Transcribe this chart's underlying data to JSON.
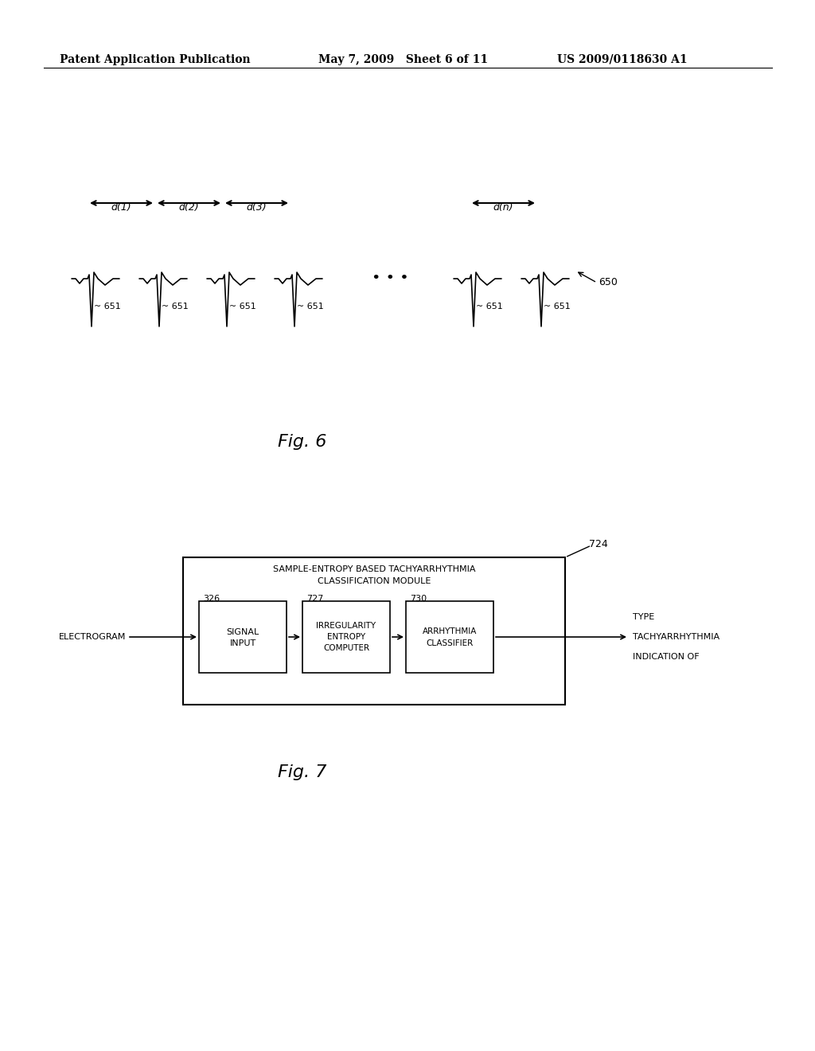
{
  "bg_color": "#ffffff",
  "header_left": "Patent Application Publication",
  "header_mid": "May 7, 2009   Sheet 6 of 11",
  "header_right": "US 2009/0118630 A1",
  "fig6_label": "Fig. 6",
  "fig7_label": "Fig. 7",
  "ecg_label": "651",
  "waveform_label": "650",
  "d_labels": [
    "d(1)",
    "d(2)",
    "d(3)",
    "d(n)"
  ],
  "module_title_line1": "SAMPLE-ENTROPY BASED TACHYARRHYTHMIA",
  "module_title_line2": "CLASSIFICATION MODULE",
  "module_ref": "724",
  "box1_label_line1": "SIGNAL",
  "box1_label_line2": "INPUT",
  "box1_ref": "326",
  "box2_label_line1": "IRREGULARITY",
  "box2_label_line2": "ENTROPY",
  "box2_label_line3": "COMPUTER",
  "box2_ref": "727",
  "box3_label_line1": "ARRHYTHMIA",
  "box3_label_line2": "CLASSIFIER",
  "box3_ref": "730",
  "input_label": "ELECTROGRAM",
  "output_label_line1": "INDICATION OF",
  "output_label_line2": "TACHYARRHYTHMIA",
  "output_label_line3": "TYPE"
}
